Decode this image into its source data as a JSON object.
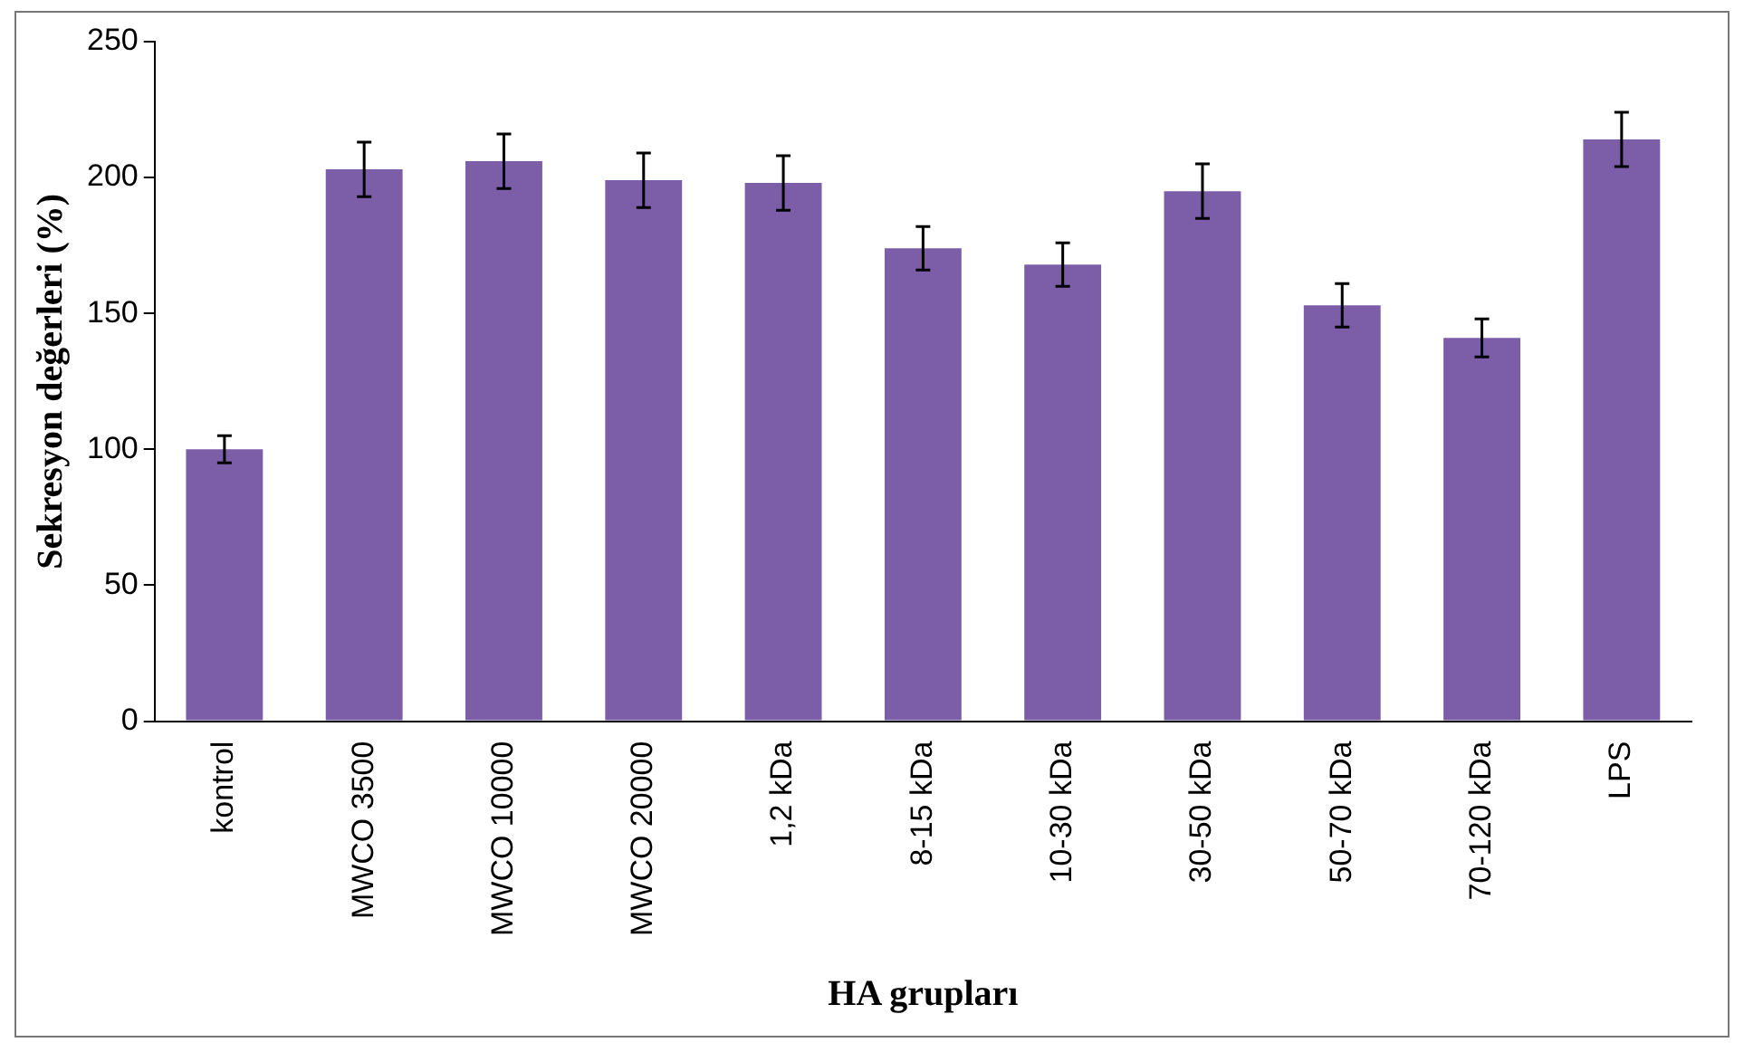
{
  "chart_data": {
    "type": "bar",
    "xlabel": "HA grupları",
    "ylabel": "Sekresyon değerleri (%)",
    "categories": [
      "kontrol",
      "MWCO 3500",
      "MWCO 10000",
      "MWCO 20000",
      "1,2 kDa",
      "8-15 kDa",
      "10-30 kDa",
      "30-50 kDa",
      "50-70 kDa",
      "70-120 kDa",
      "LPS"
    ],
    "values": [
      100,
      203,
      206,
      199,
      198,
      174,
      168,
      195,
      153,
      141,
      214
    ],
    "errors": [
      5,
      10,
      10,
      10,
      10,
      8,
      8,
      10,
      8,
      7,
      10
    ],
    "color": "#7b5ea7",
    "ylim": [
      0,
      250
    ],
    "yticks": [
      0,
      50,
      100,
      150,
      200,
      250
    ],
    "grid": false,
    "legend": false
  }
}
